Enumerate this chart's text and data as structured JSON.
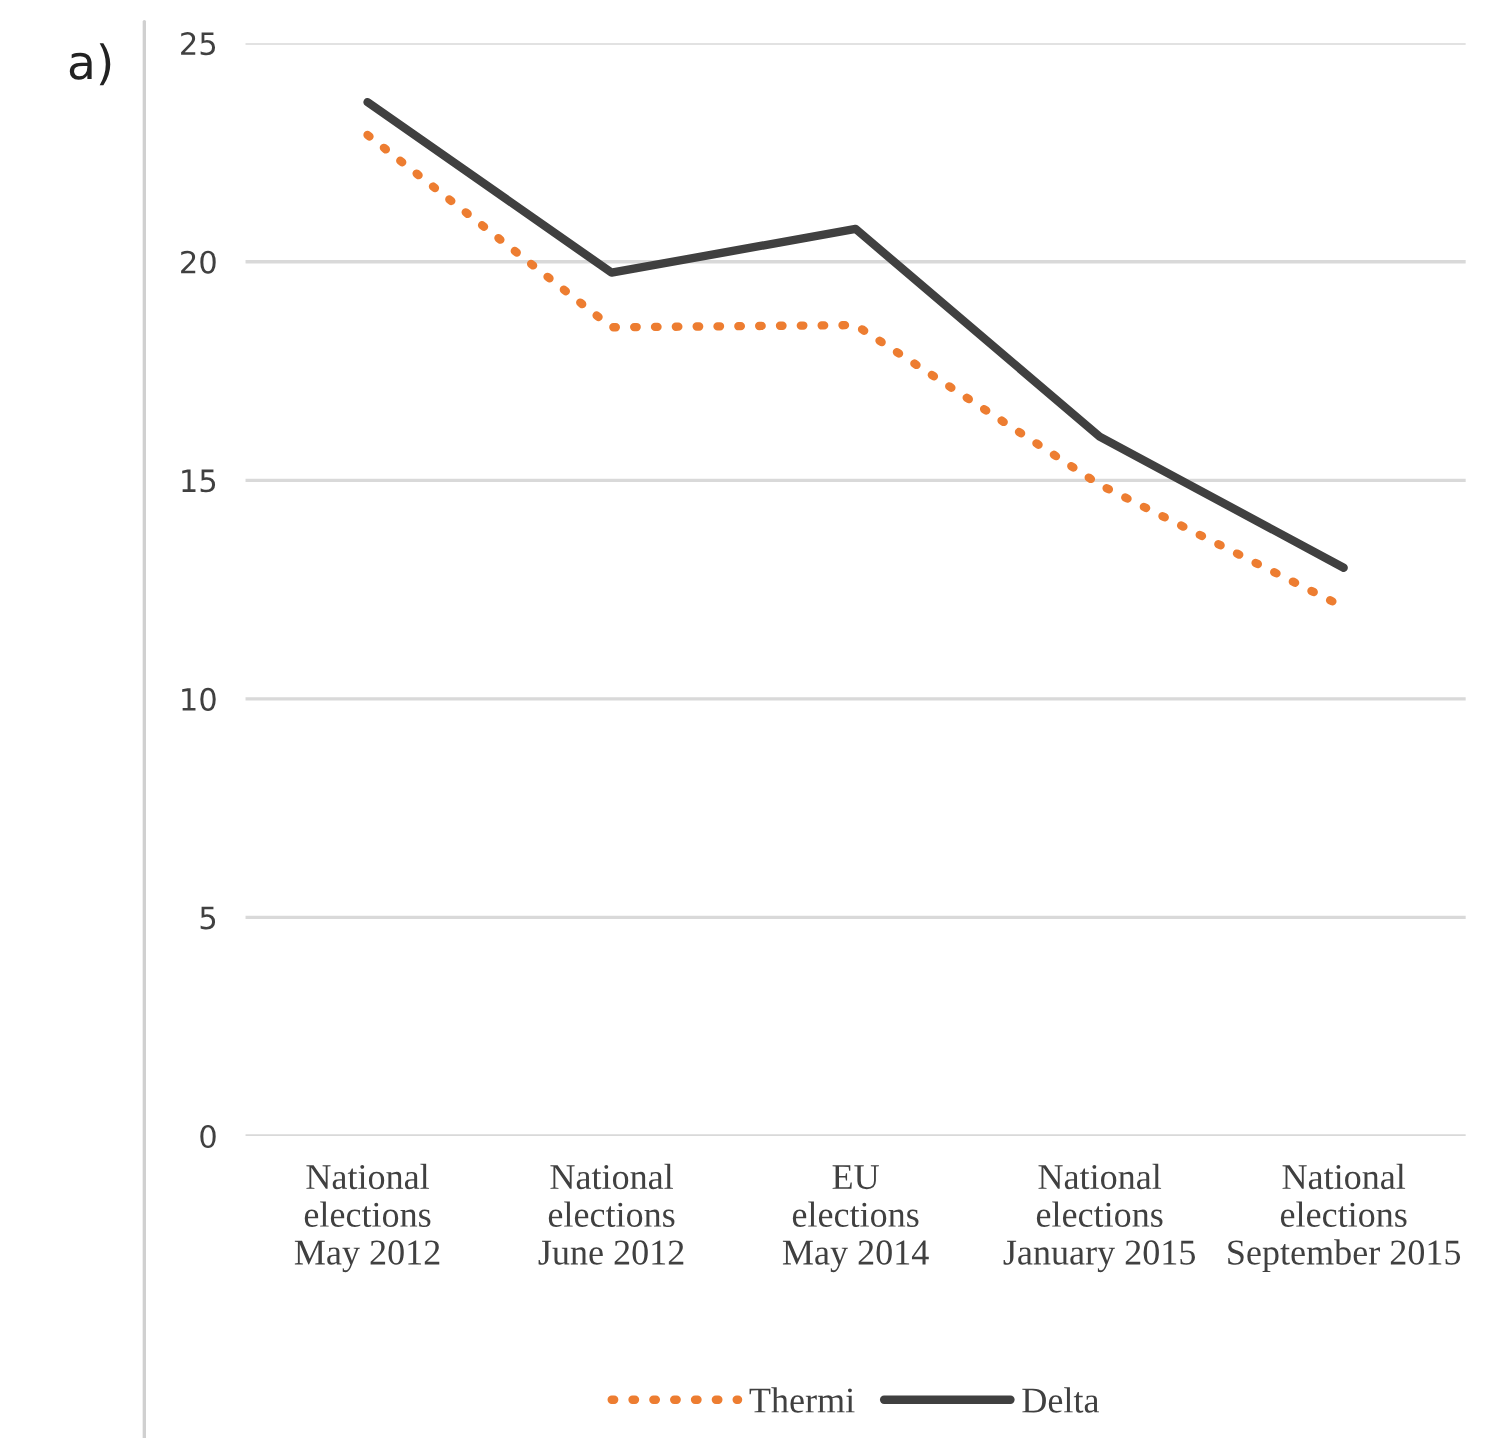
{
  "chart_data": {
    "type": "line",
    "annotations": [
      "a)"
    ],
    "categories": [
      "National\nelections\nMay 2012",
      "National\nelections\nJune 2012",
      "EU\nelections\nMay 2014",
      "National\nelections\nJanuary 2015",
      "National\nelections\nSeptember 2015"
    ],
    "series": [
      {
        "name": "Thermi",
        "color": "#ed7d31",
        "line_style": "dotted",
        "values": [
          22.9,
          18.5,
          18.55,
          14.9,
          12.1
        ]
      },
      {
        "name": "Delta",
        "color": "#404040",
        "line_style": "solid",
        "values": [
          23.65,
          19.75,
          20.75,
          16.0,
          13.0
        ]
      }
    ],
    "ylim": [
      0,
      25
    ],
    "yticks": [
      0,
      5,
      10,
      15,
      20,
      25
    ],
    "grid": "y",
    "legend": "bottom"
  }
}
